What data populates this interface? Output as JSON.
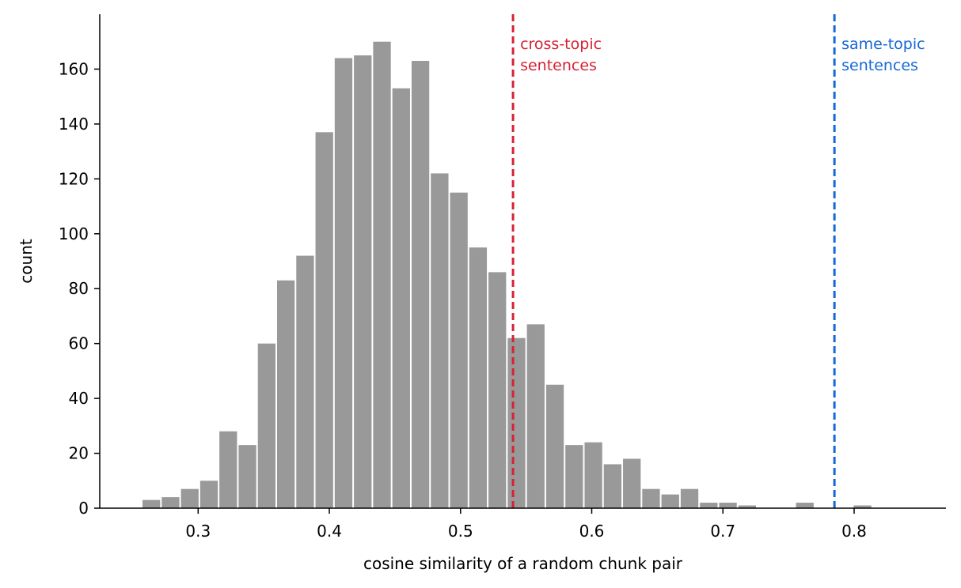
{
  "chart_data": {
    "type": "bar",
    "subtype": "histogram",
    "xlabel": "cosine similarity of a random chunk pair",
    "ylabel": "count",
    "xlim": [
      0.225,
      0.87
    ],
    "ylim": [
      0,
      180
    ],
    "xticks": [
      0.3,
      0.4,
      0.5,
      0.6,
      0.7,
      0.8
    ],
    "xtick_labels": [
      "0.3",
      "0.4",
      "0.5",
      "0.6",
      "0.7",
      "0.8"
    ],
    "yticks": [
      0,
      20,
      40,
      60,
      80,
      100,
      120,
      140,
      160
    ],
    "ytick_labels": [
      "0",
      "20",
      "40",
      "60",
      "80",
      "100",
      "120",
      "140",
      "160"
    ],
    "bin_start": 0.257,
    "bin_width": 0.01465,
    "values": [
      3,
      4,
      7,
      10,
      28,
      23,
      60,
      83,
      92,
      137,
      164,
      165,
      170,
      153,
      163,
      122,
      115,
      95,
      86,
      62,
      67,
      45,
      23,
      24,
      16,
      18,
      7,
      5,
      7,
      2,
      2,
      1,
      0,
      0,
      2,
      0,
      0,
      1
    ],
    "bar_color": "#999999",
    "grid": false,
    "legend": "none",
    "reference_lines": [
      {
        "x": 0.54,
        "label_line1": "cross-topic",
        "label_line2": "sentences",
        "color": "#d62232",
        "style": "dashed"
      },
      {
        "x": 0.785,
        "label_line1": "same-topic",
        "label_line2": "sentences",
        "color": "#1468d6",
        "style": "dashed"
      }
    ]
  }
}
